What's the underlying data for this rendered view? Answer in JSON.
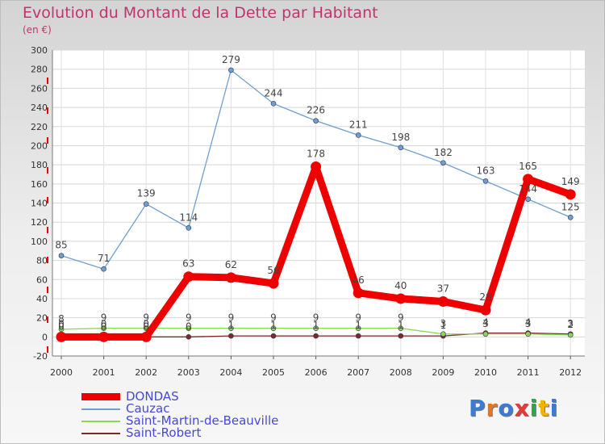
{
  "header": {
    "title": "Evolution du Montant de la Dette par Habitant",
    "subtitle": "(en €)"
  },
  "logo": {
    "text": "Proxiti",
    "colors": [
      "#3a7bd5",
      "#e8741c",
      "#3a7bd5",
      "#e23a3a",
      "#2aa84a",
      "#f0b400",
      "#3a7bd5"
    ]
  },
  "chart_data": {
    "type": "line",
    "title": "Evolution du Montant de la Dette par Habitant",
    "subtitle": "(en €)",
    "xlabel": "",
    "ylabel": "",
    "x": [
      "2000",
      "2001",
      "2002",
      "2003",
      "2004",
      "2005",
      "2006",
      "2007",
      "2008",
      "2009",
      "2010",
      "2011",
      "2012"
    ],
    "ylim": [
      -20,
      300
    ],
    "yticks": [
      -20,
      0,
      20,
      40,
      60,
      80,
      100,
      120,
      140,
      160,
      180,
      200,
      220,
      240,
      260,
      280,
      300
    ],
    "grid": true,
    "legend_position": "bottom-left",
    "series": [
      {
        "name": "DONDAS",
        "color": "#ee0000",
        "values": [
          0,
          0,
          0,
          63,
          62,
          56,
          178,
          46,
          40,
          37,
          28,
          165,
          149
        ],
        "labels": [
          "0",
          "0",
          "0",
          "63",
          "62",
          "56",
          "178",
          "46",
          "40",
          "37",
          "28",
          "165",
          "149"
        ]
      },
      {
        "name": "Cauzac",
        "color": "#6e9fd0",
        "values": [
          85,
          71,
          139,
          114,
          279,
          244,
          226,
          211,
          198,
          182,
          163,
          144,
          125
        ],
        "labels": [
          "85",
          "71",
          "139",
          "114",
          "279",
          "244",
          "226",
          "211",
          "198",
          "182",
          "163",
          "144",
          "125"
        ]
      },
      {
        "name": "Saint-Martin-de-Beauville",
        "color": "#88d850",
        "values": [
          8,
          9,
          9,
          9,
          9,
          9,
          9,
          9,
          9,
          3,
          3,
          3,
          2
        ],
        "labels": [
          "8",
          "9",
          "9",
          "9",
          "9",
          "9",
          "9",
          "9",
          "9",
          "3",
          "3",
          "3",
          "2"
        ]
      },
      {
        "name": "Saint-Robert",
        "color": "#7a2a2a",
        "values": [
          0,
          0,
          0,
          0,
          1,
          1,
          1,
          1,
          1,
          1,
          4,
          4,
          3
        ],
        "labels": [
          "0",
          "0",
          "0",
          "0",
          "1",
          "1",
          "1",
          "1",
          "1",
          "1",
          "4",
          "4",
          "3"
        ]
      }
    ]
  }
}
